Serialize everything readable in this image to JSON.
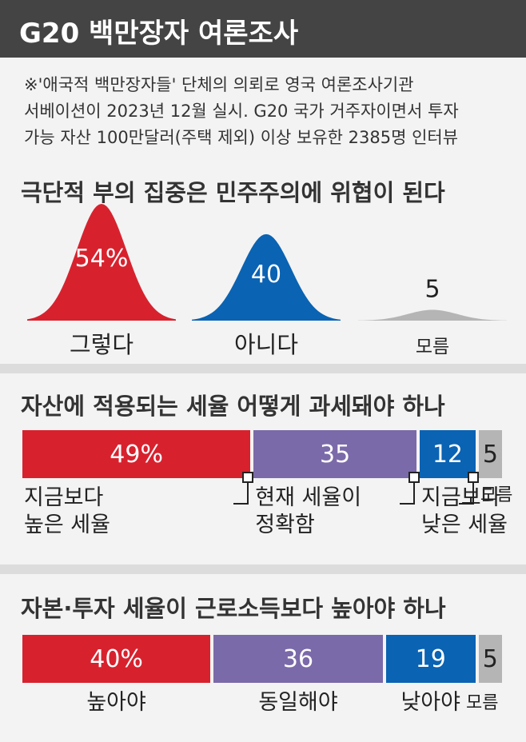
{
  "header": {
    "title": "G20 백만장자 여론조사"
  },
  "note": {
    "lines": [
      "※'애국적 백만장자들' 단체의 의뢰로 영국 여론조사기관",
      "서베이션이 2023년 12월 실시. G20 국가 거주자이면서 투자",
      "가능 자산 100만달러(주택 제외) 이상 보유한 2385명 인터뷰"
    ]
  },
  "colors": {
    "red": "#d7222e",
    "blue": "#0a63b3",
    "purple": "#7b6aa9",
    "grey": "#b5b5b5"
  },
  "chart_data": [
    {
      "type": "area",
      "title": "극단적 부의 집중은 민주주의에 위협이 된다",
      "categories": [
        "그렇다",
        "아니다",
        "모름"
      ],
      "values": [
        54,
        40,
        5
      ],
      "value_labels": [
        "54%",
        "40",
        "5"
      ],
      "colors": [
        "#d7222e",
        "#0a63b3",
        "#b5b5b5"
      ]
    },
    {
      "type": "bar",
      "stacked": true,
      "title": "자산에 적용되는 세율 어떻게 과세돼야 하나",
      "categories": [
        "지금보다 높은 세율",
        "현재 세율이 정확함",
        "지금보다 낮은 세율",
        "모름"
      ],
      "label_lines": [
        [
          "지금보다",
          "높은 세율"
        ],
        [
          "현재 세율이",
          "정확함"
        ],
        [
          "지금보다",
          "낮은 세율"
        ],
        [
          "모름"
        ]
      ],
      "values": [
        49,
        35,
        12,
        5
      ],
      "value_labels": [
        "49%",
        "35",
        "12",
        "5"
      ],
      "colors": [
        "#d7222e",
        "#7b6aa9",
        "#0a63b3",
        "#b5b5b5"
      ]
    },
    {
      "type": "bar",
      "stacked": true,
      "title": "자본·투자 세율이 근로소득보다 높아야 하나",
      "categories": [
        "높아야",
        "동일해야",
        "낮아야",
        "모름"
      ],
      "values": [
        40,
        36,
        19,
        5
      ],
      "value_labels": [
        "40%",
        "36",
        "19",
        "5"
      ],
      "colors": [
        "#d7222e",
        "#7b6aa9",
        "#0a63b3",
        "#b5b5b5"
      ]
    }
  ]
}
